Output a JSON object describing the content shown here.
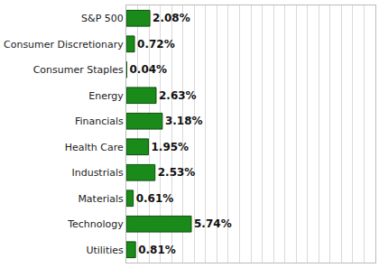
{
  "chart_data": {
    "type": "bar",
    "orientation": "horizontal",
    "categories": [
      "S&P 500",
      "Consumer Discretionary",
      "Consumer Staples",
      "Energy",
      "Financials",
      "Health Care",
      "Industrials",
      "Materials",
      "Technology",
      "Utilities"
    ],
    "values": [
      2.08,
      0.72,
      0.04,
      2.63,
      3.18,
      1.95,
      2.53,
      0.61,
      5.74,
      0.81
    ],
    "value_labels": [
      "2.08%",
      "0.72%",
      "0.04%",
      "2.63%",
      "3.18%",
      "1.95%",
      "2.53%",
      "0.61%",
      "5.74%",
      "0.81%"
    ],
    "color": "#1a8a1a",
    "xlim": [
      0,
      22
    ],
    "xticks": [
      0,
      1,
      2,
      3,
      4,
      5,
      6,
      7,
      8,
      9,
      10,
      11,
      12,
      13,
      14,
      15,
      16,
      17,
      18,
      19,
      20,
      21,
      22
    ],
    "grid": true,
    "data_labels": true,
    "tick_labels": "y"
  }
}
